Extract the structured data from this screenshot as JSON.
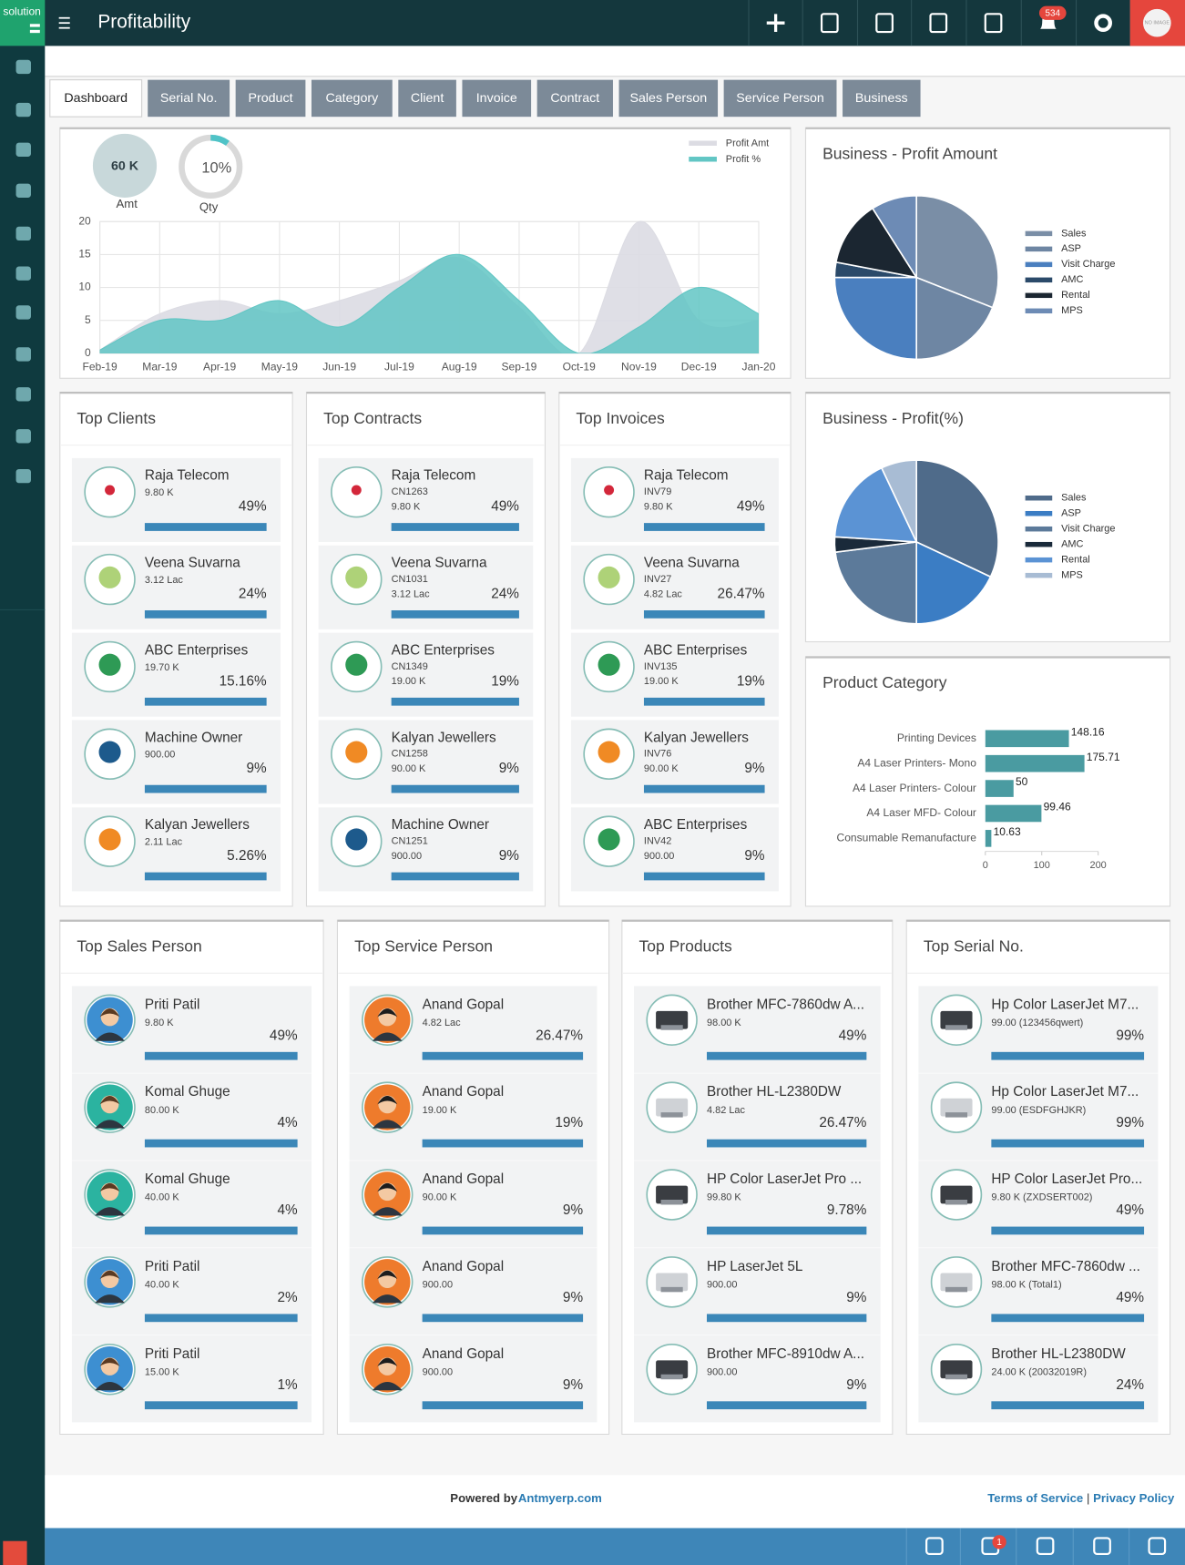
{
  "app": {
    "logo": "solution",
    "title": "Profitability",
    "notifications": "534",
    "avatar": "NO IMAGE"
  },
  "tabs": [
    "Dashboard",
    "Serial No.",
    "Product",
    "Category",
    "Client",
    "Invoice",
    "Contract",
    "Sales Person",
    "Service Person",
    "Business"
  ],
  "profit_chart": {
    "type": "area",
    "kpis": {
      "amount": {
        "text": "60 K",
        "caption": "Amt"
      },
      "qty": {
        "value": 10,
        "label": "10%",
        "caption": "Qty",
        "color": "#4fc3c7"
      }
    },
    "categories": [
      "Feb-19",
      "Mar-19",
      "Apr-19",
      "May-19",
      "Jun-19",
      "Jul-19",
      "Aug-19",
      "Sep-19",
      "Oct-19",
      "Nov-19",
      "Dec-19",
      "Jan-20"
    ],
    "series": [
      {
        "name": "Profit Amt",
        "color": "#dcdce3",
        "values": [
          0.5,
          6,
          8,
          6,
          8,
          11,
          14.5,
          7,
          0,
          20,
          5,
          5
        ]
      },
      {
        "name": "Profit %",
        "color": "#62c6c4",
        "values": [
          0.5,
          5,
          5,
          8,
          4,
          10,
          15,
          8,
          0,
          4,
          10,
          6
        ]
      }
    ],
    "ylim": [
      0,
      20
    ],
    "yticks": [
      0,
      5,
      10,
      15,
      20
    ],
    "grid": true
  },
  "profit_amount_pie": {
    "type": "pie",
    "title": "Business - Profit Amount",
    "categories": [
      "Sales",
      "ASP",
      "Visit Charge",
      "AMC",
      "Rental",
      "MPS"
    ],
    "values": [
      31,
      19,
      25,
      3,
      13,
      9
    ],
    "colors": [
      "#7a8ea6",
      "#6e86a3",
      "#4a7fbf",
      "#2b4a6a",
      "#1b2631",
      "#6d8bb5"
    ]
  },
  "profit_pct_pie": {
    "type": "pie",
    "title": "Business - Profit(%)",
    "categories": [
      "Sales",
      "ASP",
      "Visit Charge",
      "AMC",
      "Rental",
      "MPS"
    ],
    "values": [
      32,
      18,
      23,
      3,
      17,
      7
    ],
    "colors": [
      "#4f6b8a",
      "#3b7dc4",
      "#5c7a9a",
      "#1a2a3a",
      "#5b93d4",
      "#a8bcd4"
    ]
  },
  "product_category": {
    "type": "bar",
    "orientation": "horizontal",
    "title": "Product Category",
    "categories": [
      "Printing Devices",
      "A4 Laser Printers- Mono",
      "A4 Laser Printers- Colour",
      "A4 Laser MFD- Colour",
      "Consumable Remanufacture"
    ],
    "values": [
      148.16,
      175.71,
      50,
      99.46,
      10.63
    ],
    "color": "#4a9ba1",
    "xlim": [
      0,
      200
    ],
    "xticks": [
      0,
      100,
      200
    ]
  },
  "lists": [
    {
      "title": "Top Clients",
      "items": [
        {
          "name": "Raja Telecom",
          "amount": "9.80 K",
          "share": "49%"
        },
        {
          "name": "Veena Suvarna",
          "amount": "3.12 Lac",
          "share": "24%"
        },
        {
          "name": "ABC Enterprises",
          "amount": "19.70 K",
          "share": "15.16%"
        },
        {
          "name": "Machine Owner",
          "amount": "900.00",
          "share": "9%"
        },
        {
          "name": "Kalyan Jewellers",
          "amount": "2.11 Lac",
          "share": "5.26%"
        }
      ]
    },
    {
      "title": "Top Contracts",
      "items": [
        {
          "name": "Raja Telecom",
          "code": "CN1263",
          "amount": "9.80 K",
          "share": "49%"
        },
        {
          "name": "Veena Suvarna",
          "code": "CN1031",
          "amount": "3.12 Lac",
          "share": "24%"
        },
        {
          "name": "ABC Enterprises",
          "code": "CN1349",
          "amount": "19.00 K",
          "share": "19%"
        },
        {
          "name": "Kalyan Jewellers",
          "code": "CN1258",
          "amount": "90.00 K",
          "share": "9%"
        },
        {
          "name": "Machine Owner",
          "code": "CN1251",
          "amount": "900.00",
          "share": "9%"
        }
      ]
    },
    {
      "title": "Top Invoices",
      "items": [
        {
          "name": "Raja Telecom",
          "code": "INV79",
          "amount": "9.80 K",
          "share": "49%"
        },
        {
          "name": "Veena Suvarna",
          "code": "INV27",
          "amount": "4.82 Lac",
          "share": "26.47%"
        },
        {
          "name": "ABC Enterprises",
          "code": "INV135",
          "amount": "19.00 K",
          "share": "19%"
        },
        {
          "name": "Kalyan Jewellers",
          "code": "INV76",
          "amount": "90.00 K",
          "share": "9%"
        },
        {
          "name": "ABC Enterprises",
          "code": "INV42",
          "amount": "900.00",
          "share": "9%"
        }
      ]
    },
    {
      "title": "Top Sales Person",
      "items": [
        {
          "name": "Priti Patil",
          "amount": "9.80 K",
          "share": "49%"
        },
        {
          "name": "Komal Ghuge",
          "amount": "80.00 K",
          "share": "4%"
        },
        {
          "name": "Komal Ghuge",
          "amount": "40.00 K",
          "share": "4%"
        },
        {
          "name": "Priti Patil",
          "amount": "40.00 K",
          "share": "2%"
        },
        {
          "name": "Priti Patil",
          "amount": "15.00 K",
          "share": "1%"
        }
      ]
    },
    {
      "title": "Top Service Person",
      "items": [
        {
          "name": "Anand Gopal",
          "amount": "4.82 Lac",
          "share": "26.47%"
        },
        {
          "name": "Anand Gopal",
          "amount": "19.00 K",
          "share": "19%"
        },
        {
          "name": "Anand Gopal",
          "amount": "90.00 K",
          "share": "9%"
        },
        {
          "name": "Anand Gopal",
          "amount": "900.00",
          "share": "9%"
        },
        {
          "name": "Anand Gopal",
          "amount": "900.00",
          "share": "9%"
        }
      ]
    },
    {
      "title": "Top Products",
      "items": [
        {
          "name": "Brother MFC-7860dw A...",
          "amount": "98.00 K",
          "share": "49%"
        },
        {
          "name": "Brother HL-L2380DW",
          "amount": "4.82 Lac",
          "share": "26.47%"
        },
        {
          "name": "HP Color LaserJet Pro ...",
          "amount": "99.80 K",
          "share": "9.78%"
        },
        {
          "name": "HP LaserJet 5L",
          "amount": "900.00",
          "share": "9%"
        },
        {
          "name": "Brother MFC-8910dw A...",
          "amount": "900.00",
          "share": "9%"
        }
      ]
    },
    {
      "title": "Top Serial No.",
      "items": [
        {
          "name": "Hp Color LaserJet M7...",
          "amount": "99.00 (123456qwert)",
          "share": "99%"
        },
        {
          "name": "Hp Color LaserJet M7...",
          "amount": "99.00 (ESDFGHJKR)",
          "share": "99%"
        },
        {
          "name": "HP Color LaserJet Pro...",
          "amount": "9.80 K (ZXDSERT002)",
          "share": "49%"
        },
        {
          "name": "Brother MFC-7860dw ...",
          "amount": "98.00 K (Total1)",
          "share": "49%"
        },
        {
          "name": "Brother HL-L2380DW",
          "amount": "24.00 K (20032019R)",
          "share": "24%"
        }
      ]
    }
  ],
  "footer": {
    "powered_by": "Powered by",
    "site": "Antmyerp.com",
    "terms": "Terms of Service",
    "separator": "|",
    "privacy": "Privacy Policy",
    "badge": "1"
  }
}
